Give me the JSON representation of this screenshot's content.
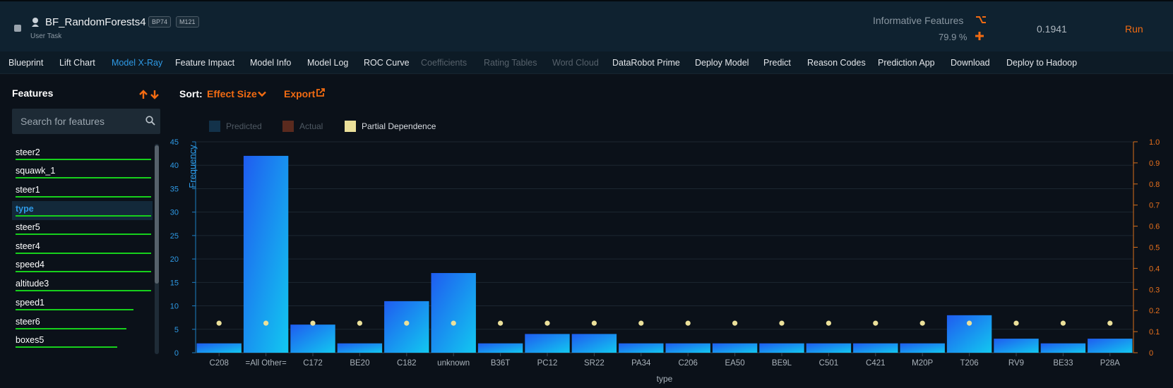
{
  "header": {
    "title": "BF_RandomForests4",
    "badges": [
      "BP74",
      "M121"
    ],
    "subtitle": "User Task",
    "informative_label": "Informative Features",
    "informative_value": "79.9 %",
    "score": "0.1941",
    "run_label": "Run"
  },
  "tabs": [
    {
      "label": "Blueprint",
      "state": "normal"
    },
    {
      "label": "Lift Chart",
      "state": "normal"
    },
    {
      "label": "Model X-Ray",
      "state": "active"
    },
    {
      "label": "Feature Impact",
      "state": "normal"
    },
    {
      "label": "Model Info",
      "state": "normal"
    },
    {
      "label": "Model Log",
      "state": "normal"
    },
    {
      "label": "ROC Curve",
      "state": "normal"
    },
    {
      "label": "Coefficients",
      "state": "disabled"
    },
    {
      "label": "Rating Tables",
      "state": "disabled"
    },
    {
      "label": "Word Cloud",
      "state": "disabled"
    },
    {
      "label": "DataRobot Prime",
      "state": "normal"
    },
    {
      "label": "Deploy Model",
      "state": "normal"
    },
    {
      "label": "Predict",
      "state": "normal"
    },
    {
      "label": "Reason Codes",
      "state": "normal"
    },
    {
      "label": "Prediction App",
      "state": "normal"
    },
    {
      "label": "Download",
      "state": "normal"
    },
    {
      "label": "Deploy to Hadoop",
      "state": "normal"
    }
  ],
  "sidebar": {
    "title": "Features",
    "search_placeholder": "Search for features",
    "features": [
      {
        "name": "steer2",
        "importance": 1.0
      },
      {
        "name": "squawk_1",
        "importance": 1.0
      },
      {
        "name": "steer1",
        "importance": 1.0
      },
      {
        "name": "type",
        "importance": 1.0,
        "selected": true
      },
      {
        "name": "steer5",
        "importance": 1.0
      },
      {
        "name": "steer4",
        "importance": 1.0
      },
      {
        "name": "speed4",
        "importance": 1.0
      },
      {
        "name": "altitude3",
        "importance": 1.0
      },
      {
        "name": "speed1",
        "importance": 0.87
      },
      {
        "name": "steer6",
        "importance": 0.82
      },
      {
        "name": "boxes5",
        "importance": 0.75
      }
    ]
  },
  "toolbar": {
    "sort_label": "Sort:",
    "sort_value": "Effect Size",
    "export_label": "Export"
  },
  "colors": {
    "accent": "#f26b12",
    "active_tab": "#2e9ae6",
    "importance_bar": "#17d01c",
    "bar_light": "#12c8f0",
    "bar_dark": "#1f5cf0",
    "partial_dependence": "#ebe09a"
  },
  "chart_data": {
    "type": "bar",
    "legend": [
      {
        "label": "Predicted",
        "enabled": false,
        "color": "#13324a"
      },
      {
        "label": "Actual",
        "enabled": false,
        "color": "#5a2a1e"
      },
      {
        "label": "Partial Dependence",
        "enabled": true,
        "color": "#ebe09a"
      }
    ],
    "legend_position": "top-left",
    "categories": [
      "C208",
      "=All Other=",
      "C172",
      "BE20",
      "C182",
      "unknown",
      "B36T",
      "PC12",
      "SR22",
      "PA34",
      "C206",
      "EA50",
      "BE9L",
      "C501",
      "C421",
      "M20P",
      "T206",
      "RV9",
      "BE33",
      "P28A"
    ],
    "series": [
      {
        "name": "Frequency",
        "axis": "left",
        "values": [
          2,
          42,
          6,
          2,
          11,
          17,
          2,
          4,
          4,
          2,
          2,
          2,
          2,
          2,
          2,
          2,
          8,
          3,
          2,
          3
        ]
      },
      {
        "name": "Partial Dependence",
        "axis": "right",
        "values": [
          0.14,
          0.14,
          0.14,
          0.14,
          0.14,
          0.14,
          0.14,
          0.14,
          0.14,
          0.14,
          0.14,
          0.14,
          0.14,
          0.14,
          0.14,
          0.14,
          0.14,
          0.14,
          0.14,
          0.14
        ]
      }
    ],
    "xlabel": "type",
    "ylabel": "Frequency",
    "ylim": [
      0,
      45
    ],
    "yticks": [
      0,
      5,
      10,
      15,
      20,
      25,
      30,
      35,
      40,
      45
    ],
    "y2lim": [
      0,
      1.0
    ],
    "y2ticks": [
      "0",
      "0.1",
      "0.2",
      "0.3",
      "0.4",
      "0.5",
      "0.6",
      "0.7",
      "0.8",
      "0.9",
      "1.0"
    ],
    "grid": true
  }
}
